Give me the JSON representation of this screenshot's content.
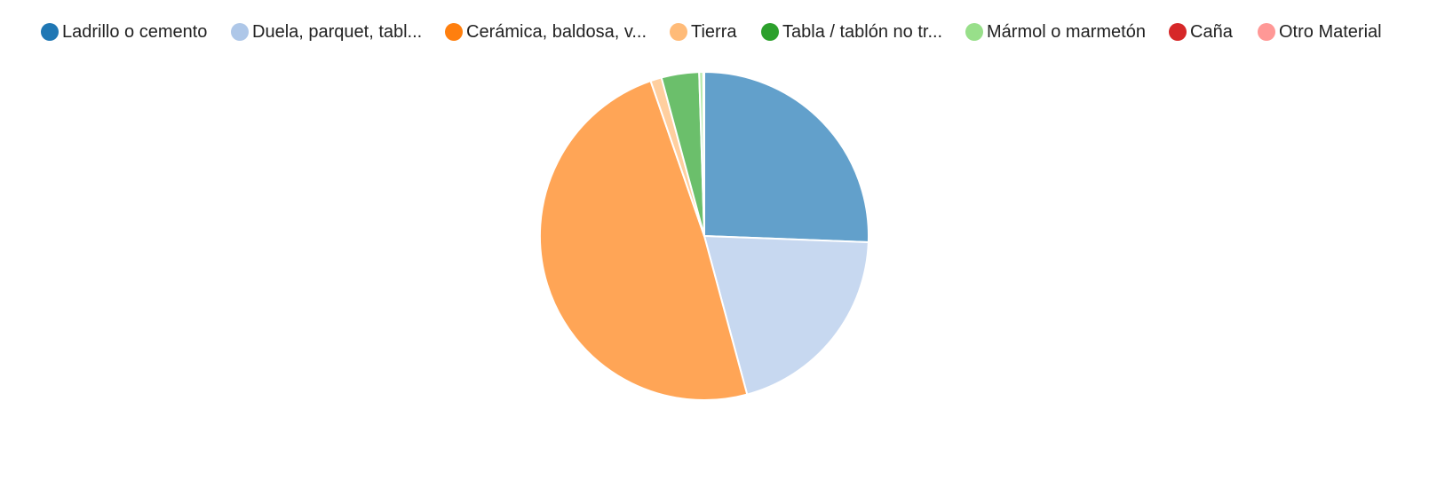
{
  "chart_data": {
    "type": "pie",
    "categories": [
      "Ladrillo o cemento",
      "Duela, parquet, tabl...",
      "Cerámica, baldosa, v...",
      "Tierra",
      "Tabla / tablón no tr...",
      "Mármol o marmetón",
      "Caña",
      "Otro Material"
    ],
    "values": [
      25.6,
      20.2,
      48.9,
      1.1,
      3.7,
      0.4,
      0.05,
      0.05
    ],
    "legend_colors": [
      "#1f77b4",
      "#aec7e8",
      "#ff7f0e",
      "#ffbb78",
      "#2ca02c",
      "#98df8a",
      "#d62728",
      "#ff9896"
    ],
    "slice_colors": [
      "#62a0cb",
      "#c7d8f0",
      "#ffa556",
      "#ffcf9f",
      "#6bbf6b",
      "#b7e9ad",
      "#e26869",
      "#ffb7b5"
    ],
    "legend_position": "top",
    "start_angle_deg": 0,
    "direction": "clockwise"
  }
}
